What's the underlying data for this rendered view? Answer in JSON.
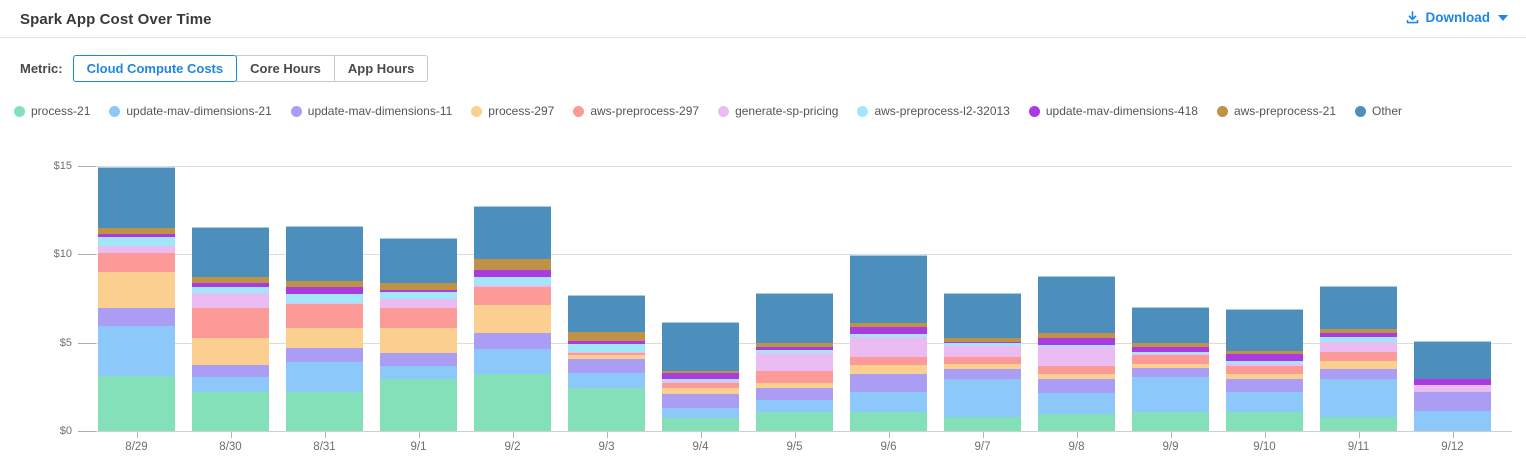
{
  "header": {
    "title": "Spark App Cost Over Time",
    "download_label": "Download"
  },
  "metric": {
    "label": "Metric:",
    "options": [
      {
        "label": "Cloud Compute Costs",
        "selected": true
      },
      {
        "label": "Core Hours",
        "selected": false
      },
      {
        "label": "App Hours",
        "selected": false
      }
    ]
  },
  "colors": {
    "accent_blue": "#1e86e8"
  },
  "chart_data": {
    "type": "bar",
    "stacked": true,
    "title": "Spark App Cost Over Time",
    "xlabel": "",
    "ylabel": "",
    "ylim": [
      0,
      15
    ],
    "ytick_labels": [
      "$0",
      "$5",
      "$10",
      "$15"
    ],
    "ytick_values": [
      0,
      5,
      10,
      15
    ],
    "grid": true,
    "legend_position": "top",
    "categories": [
      "8/29",
      "8/30",
      "8/31",
      "9/1",
      "9/2",
      "9/3",
      "9/4",
      "9/5",
      "9/6",
      "9/7",
      "9/8",
      "9/9",
      "9/10",
      "9/11",
      "9/12"
    ],
    "series": [
      {
        "name": "process-21",
        "color": "#83e0b8",
        "values": [
          3.13,
          2.19,
          2.23,
          2.94,
          3.21,
          2.42,
          0.72,
          1.06,
          1.09,
          0.81,
          0.94,
          1.06,
          1.06,
          0.81,
          0
        ]
      },
      {
        "name": "update-mav-dimensions-21",
        "color": "#8dc8fb",
        "values": [
          2.83,
          0.89,
          1.66,
          0.76,
          1.43,
          0.84,
          0.56,
          0.69,
          1.1,
          2.13,
          1.19,
          2.02,
          1.17,
          2.13,
          1.13
        ]
      },
      {
        "name": "update-mav-dimensions-11",
        "color": "#ac9df4",
        "values": [
          0.98,
          0.66,
          0.83,
          0.7,
          0.89,
          0.82,
          0.8,
          0.67,
          1.02,
          0.55,
          0.81,
          0.47,
          0.71,
          0.55,
          1.06
        ]
      },
      {
        "name": "process-297",
        "color": "#facf90",
        "values": [
          2.06,
          1.51,
          1.13,
          1.45,
          1.6,
          0.22,
          0.37,
          0.28,
          0.53,
          0.28,
          0.27,
          0.22,
          0.27,
          0.47,
          0
        ]
      },
      {
        "name": "aws-preprocess-297",
        "color": "#fb9a97",
        "values": [
          1.05,
          1.69,
          1.32,
          1.13,
          1.0,
          0.15,
          0.29,
          0.7,
          0.43,
          0.4,
          0.49,
          0.53,
          0.49,
          0.49,
          0
        ]
      },
      {
        "name": "generate-sp-pricing",
        "color": "#ebbcf1",
        "values": [
          0.45,
          0.85,
          0.08,
          0.49,
          0.13,
          0.02,
          0.09,
          1.0,
          1.17,
          0.66,
          1.04,
          0.04,
          0.07,
          0.61,
          0.41
        ]
      },
      {
        "name": "aws-preprocess-l2-32013",
        "color": "#a2e6fa",
        "values": [
          0.5,
          0.38,
          0.49,
          0.38,
          0.48,
          0.47,
          0.11,
          0.18,
          0.15,
          0.13,
          0.13,
          0.15,
          0.19,
          0.28,
          0
        ]
      },
      {
        "name": "update-mav-dimensions-418",
        "color": "#a93be1",
        "values": [
          0.17,
          0.19,
          0.42,
          0.13,
          0.37,
          0.17,
          0.32,
          0.19,
          0.38,
          0.1,
          0.41,
          0.25,
          0.38,
          0.19,
          0.34
        ]
      },
      {
        "name": "aws-preprocess-21",
        "color": "#c09245",
        "values": [
          0.32,
          0.38,
          0.32,
          0.38,
          0.61,
          0.49,
          0.14,
          0.19,
          0.22,
          0.19,
          0.25,
          0.22,
          0.19,
          0.22,
          0
        ]
      },
      {
        "name": "Other",
        "color": "#4c8fbd",
        "values": [
          3.44,
          2.83,
          3.11,
          2.55,
          3.03,
          2.12,
          2.79,
          2.83,
          3.87,
          2.54,
          3.24,
          2.08,
          2.38,
          2.46,
          2.15
        ]
      }
    ]
  }
}
